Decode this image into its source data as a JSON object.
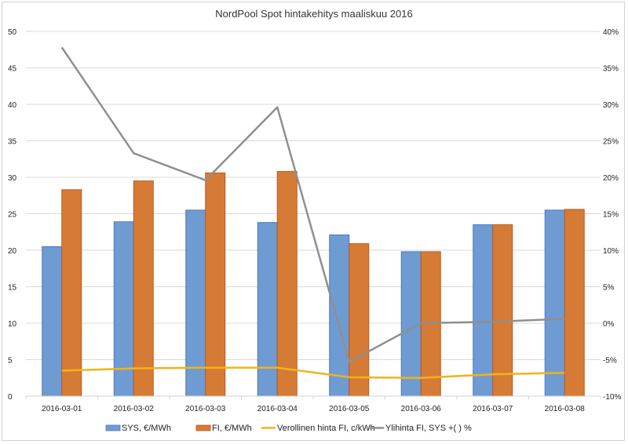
{
  "chart_data": {
    "type": "bar",
    "title": "NordPool Spot hintakehitys maaliskuu 2016",
    "xlabel": "",
    "ylabel": "",
    "categories": [
      "2016-03-01",
      "2016-03-02",
      "2016-03-03",
      "2016-03-04",
      "2016-03-05",
      "2016-03-06",
      "2016-03-07",
      "2016-03-08"
    ],
    "ylim": [
      0,
      50
    ],
    "y_ticks": [
      0,
      5,
      10,
      15,
      20,
      25,
      30,
      35,
      40,
      45,
      50
    ],
    "y_tick_labels": [
      "0",
      "5",
      "10",
      "15",
      "20",
      "25",
      "30",
      "35",
      "40",
      "45",
      "50"
    ],
    "y2lim": [
      -10,
      40
    ],
    "y2_ticks": [
      -10,
      -5,
      0,
      5,
      10,
      15,
      20,
      25,
      30,
      35,
      40
    ],
    "y2_tick_labels": [
      "-10%",
      "-5%",
      "0%",
      "5%",
      "10%",
      "15%",
      "20%",
      "25%",
      "30%",
      "35%",
      "40%"
    ],
    "grid": true,
    "legend_position": "bottom",
    "series": [
      {
        "name": "SYS, €/MWh",
        "kind": "bar",
        "axis": "left",
        "color": "#6f9bd3",
        "edge": "#4a78c0",
        "values": [
          20.5,
          23.9,
          25.5,
          23.8,
          22.1,
          19.8,
          23.5,
          25.5
        ]
      },
      {
        "name": "FI, €/MWh",
        "kind": "bar",
        "axis": "left",
        "color": "#d57b36",
        "edge": "#c0581d",
        "values": [
          28.3,
          29.5,
          30.6,
          30.8,
          20.9,
          19.8,
          23.5,
          25.6
        ]
      },
      {
        "name": "Verollinen hinta FI, c/kWh",
        "kind": "line",
        "axis": "left",
        "color": "#f2b316",
        "values": [
          3.5,
          3.8,
          3.9,
          3.9,
          2.6,
          2.5,
          3.0,
          3.2
        ]
      },
      {
        "name": "Ylihinta FI, SYS +( ) %",
        "kind": "line",
        "axis": "right",
        "color": "#8f8f8f",
        "values": [
          37.8,
          23.3,
          19.6,
          29.6,
          -5.3,
          0.0,
          0.2,
          0.6
        ]
      }
    ]
  }
}
